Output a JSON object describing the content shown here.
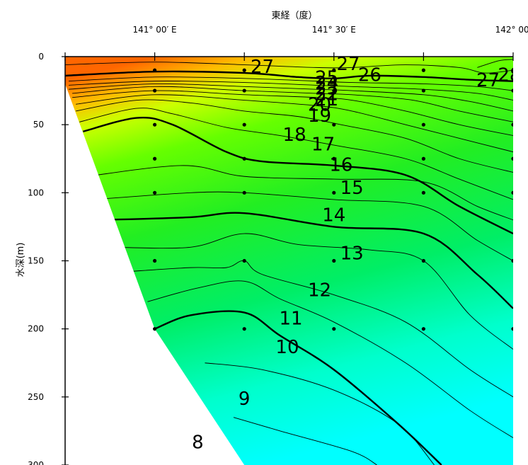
{
  "chart_data": {
    "type": "heatmap",
    "xlabel": "東経（度）",
    "ylabel": "水深(m)",
    "xlim": [
      140.75,
      142.0
    ],
    "ylim": [
      0,
      300
    ],
    "x_ticks": [
      {
        "value": 141.0,
        "label": "141° 00′ E"
      },
      {
        "value": 141.5,
        "label": "141° 30′ E"
      },
      {
        "value": 142.0,
        "label": "142° 00′"
      }
    ],
    "y_ticks": [
      {
        "value": 0,
        "label": "0"
      },
      {
        "value": 50,
        "label": "50"
      },
      {
        "value": 100,
        "label": "100"
      },
      {
        "value": 150,
        "label": "150"
      },
      {
        "value": 200,
        "label": "200"
      },
      {
        "value": 250,
        "label": "250"
      },
      {
        "value": 300,
        "label": "300"
      }
    ],
    "stations": [
      {
        "x": 141.0,
        "depths": [
          10,
          25,
          50,
          75,
          100,
          150,
          200
        ]
      },
      {
        "x": 141.25,
        "depths": [
          10,
          25,
          50,
          75,
          100,
          150,
          200
        ]
      },
      {
        "x": 141.5,
        "depths": [
          10,
          25,
          50,
          75,
          100,
          150,
          200
        ]
      },
      {
        "x": 141.75,
        "depths": [
          10,
          25,
          50,
          75,
          100,
          150,
          200
        ]
      },
      {
        "x": 142.0,
        "depths": [
          10,
          25,
          50,
          75,
          100,
          150,
          200
        ]
      }
    ],
    "bathymetry": [
      [
        140.75,
        20
      ],
      [
        141.0,
        200
      ],
      [
        141.25,
        300
      ]
    ],
    "contours": [
      {
        "level": 8,
        "bold": false,
        "points": [
          [
            141.22,
            265
          ],
          [
            141.35,
            275
          ],
          [
            141.55,
            290
          ],
          [
            141.62,
            300
          ]
        ]
      },
      {
        "level": 9,
        "bold": false,
        "points": [
          [
            141.14,
            225
          ],
          [
            141.3,
            230
          ],
          [
            141.5,
            245
          ],
          [
            141.68,
            270
          ],
          [
            141.78,
            300
          ]
        ]
      },
      {
        "level": 10,
        "bold": true,
        "points": [
          [
            141.0,
            200
          ],
          [
            141.1,
            190
          ],
          [
            141.25,
            188
          ],
          [
            141.35,
            205
          ],
          [
            141.5,
            230
          ],
          [
            141.68,
            270
          ],
          [
            141.8,
            300
          ]
        ]
      },
      {
        "level": 11,
        "bold": false,
        "points": [
          [
            140.98,
            180
          ],
          [
            141.12,
            170
          ],
          [
            141.25,
            165
          ],
          [
            141.35,
            178
          ],
          [
            141.5,
            195
          ],
          [
            141.7,
            225
          ],
          [
            141.88,
            260
          ],
          [
            142.0,
            280
          ]
        ]
      },
      {
        "level": 12,
        "bold": false,
        "points": [
          [
            140.92,
            158
          ],
          [
            141.1,
            155
          ],
          [
            141.2,
            155
          ],
          [
            141.25,
            150
          ],
          [
            141.3,
            160
          ],
          [
            141.5,
            175
          ],
          [
            141.7,
            195
          ],
          [
            141.88,
            230
          ],
          [
            142.0,
            250
          ]
        ]
      },
      {
        "level": 13,
        "bold": false,
        "points": [
          [
            140.88,
            140
          ],
          [
            141.1,
            140
          ],
          [
            141.25,
            130
          ],
          [
            141.4,
            138
          ],
          [
            141.6,
            142
          ],
          [
            141.75,
            150
          ],
          [
            141.88,
            190
          ],
          [
            142.0,
            215
          ]
        ]
      },
      {
        "level": 14,
        "bold": true,
        "points": [
          [
            140.85,
            120
          ],
          [
            141.1,
            118
          ],
          [
            141.25,
            115
          ],
          [
            141.5,
            125
          ],
          [
            141.75,
            130
          ],
          [
            141.9,
            160
          ],
          [
            142.0,
            185
          ]
        ]
      },
      {
        "level": 15,
        "bold": false,
        "points": [
          [
            140.83,
            105
          ],
          [
            141.1,
            100
          ],
          [
            141.25,
            100
          ],
          [
            141.5,
            105
          ],
          [
            141.75,
            110
          ],
          [
            141.9,
            135
          ],
          [
            142.0,
            150
          ]
        ]
      },
      {
        "level": 16,
        "bold": false,
        "points": [
          [
            140.81,
            88
          ],
          [
            141.08,
            80
          ],
          [
            141.25,
            88
          ],
          [
            141.5,
            90
          ],
          [
            141.75,
            92
          ],
          [
            141.9,
            110
          ],
          [
            142.0,
            120
          ]
        ]
      },
      {
        "level": 17,
        "bold": true,
        "points": [
          [
            140.8,
            55
          ],
          [
            140.95,
            45
          ],
          [
            141.05,
            50
          ],
          [
            141.2,
            70
          ],
          [
            141.3,
            77
          ],
          [
            141.5,
            80
          ],
          [
            141.7,
            87
          ],
          [
            141.85,
            110
          ],
          [
            142.0,
            130
          ]
        ]
      },
      {
        "level": 18,
        "bold": false,
        "points": [
          [
            140.79,
            48
          ],
          [
            140.95,
            38
          ],
          [
            141.05,
            42
          ],
          [
            141.2,
            52
          ],
          [
            141.35,
            58
          ],
          [
            141.5,
            65
          ],
          [
            141.7,
            75
          ],
          [
            141.85,
            90
          ],
          [
            142.0,
            105
          ]
        ]
      },
      {
        "level": 19,
        "bold": false,
        "points": [
          [
            140.78,
            40
          ],
          [
            140.95,
            32
          ],
          [
            141.1,
            34
          ],
          [
            141.25,
            40
          ],
          [
            141.4,
            44
          ],
          [
            141.52,
            50
          ],
          [
            141.7,
            60
          ],
          [
            141.85,
            75
          ],
          [
            142.0,
            85
          ]
        ]
      },
      {
        "level": 20,
        "bold": false,
        "points": [
          [
            140.78,
            35
          ],
          [
            141.0,
            28
          ],
          [
            141.25,
            32
          ],
          [
            141.45,
            36
          ],
          [
            141.55,
            40
          ],
          [
            141.7,
            50
          ],
          [
            141.85,
            60
          ],
          [
            142.0,
            70
          ]
        ]
      },
      {
        "level": 21,
        "bold": false,
        "points": [
          [
            140.77,
            30
          ],
          [
            141.0,
            25
          ],
          [
            141.25,
            28
          ],
          [
            141.45,
            30
          ],
          [
            141.55,
            32
          ],
          [
            141.7,
            40
          ],
          [
            141.85,
            50
          ],
          [
            142.0,
            58
          ]
        ]
      },
      {
        "level": 22,
        "bold": false,
        "points": [
          [
            140.77,
            27
          ],
          [
            141.0,
            22
          ],
          [
            141.25,
            25
          ],
          [
            141.45,
            27
          ],
          [
            141.55,
            28
          ],
          [
            141.72,
            32
          ],
          [
            141.85,
            40
          ],
          [
            142.0,
            48
          ]
        ]
      },
      {
        "level": 23,
        "bold": false,
        "points": [
          [
            140.76,
            24
          ],
          [
            141.0,
            20
          ],
          [
            141.25,
            22
          ],
          [
            141.45,
            24
          ],
          [
            141.55,
            25
          ],
          [
            141.75,
            28
          ],
          [
            141.88,
            33
          ],
          [
            142.0,
            40
          ]
        ]
      },
      {
        "level": 24,
        "bold": false,
        "points": [
          [
            140.76,
            21
          ],
          [
            141.0,
            18
          ],
          [
            141.25,
            19
          ],
          [
            141.45,
            21
          ],
          [
            141.55,
            22
          ],
          [
            141.75,
            24
          ],
          [
            141.9,
            27
          ],
          [
            142.0,
            32
          ]
        ]
      },
      {
        "level": 25,
        "bold": false,
        "points": [
          [
            140.76,
            18
          ],
          [
            141.0,
            15
          ],
          [
            141.25,
            16
          ],
          [
            141.45,
            18
          ],
          [
            141.55,
            19
          ],
          [
            141.75,
            20
          ],
          [
            141.9,
            22
          ],
          [
            142.0,
            25
          ]
        ]
      },
      {
        "level": 26,
        "bold": true,
        "points": [
          [
            140.75,
            14
          ],
          [
            141.0,
            11
          ],
          [
            141.25,
            12
          ],
          [
            141.4,
            15
          ],
          [
            141.5,
            16
          ],
          [
            141.6,
            14
          ],
          [
            141.75,
            15
          ],
          [
            141.88,
            17
          ],
          [
            142.0,
            18
          ]
        ]
      },
      {
        "level": 27,
        "bold": false,
        "points": [
          [
            140.75,
            6
          ],
          [
            141.0,
            4
          ],
          [
            141.25,
            6
          ],
          [
            141.45,
            8
          ],
          [
            141.55,
            8
          ],
          [
            141.7,
            6
          ],
          [
            141.85,
            8
          ],
          [
            141.92,
            12
          ],
          [
            142.0,
            10
          ]
        ]
      },
      {
        "level": 28,
        "bold": false,
        "points": [
          [
            141.9,
            8
          ],
          [
            141.96,
            3
          ],
          [
            142.0,
            2
          ]
        ]
      }
    ],
    "contour_labels": [
      {
        "text": "27",
        "x": 141.3,
        "y": 8
      },
      {
        "text": "27",
        "x": 141.54,
        "y": 6
      },
      {
        "text": "26",
        "x": 141.6,
        "y": 14
      },
      {
        "text": "25",
        "x": 141.48,
        "y": 16
      },
      {
        "text": "24",
        "x": 141.48,
        "y": 20
      },
      {
        "text": "23",
        "x": 141.48,
        "y": 24
      },
      {
        "text": "22",
        "x": 141.48,
        "y": 28
      },
      {
        "text": "21",
        "x": 141.48,
        "y": 32
      },
      {
        "text": "20",
        "x": 141.46,
        "y": 36
      },
      {
        "text": "19",
        "x": 141.46,
        "y": 44
      },
      {
        "text": "18",
        "x": 141.39,
        "y": 58
      },
      {
        "text": "17",
        "x": 141.47,
        "y": 65
      },
      {
        "text": "16",
        "x": 141.52,
        "y": 80
      },
      {
        "text": "15",
        "x": 141.55,
        "y": 97
      },
      {
        "text": "14",
        "x": 141.5,
        "y": 117
      },
      {
        "text": "13",
        "x": 141.55,
        "y": 145
      },
      {
        "text": "12",
        "x": 141.46,
        "y": 172
      },
      {
        "text": "11",
        "x": 141.38,
        "y": 193
      },
      {
        "text": "10",
        "x": 141.37,
        "y": 214
      },
      {
        "text": "9",
        "x": 141.25,
        "y": 252
      },
      {
        "text": "8",
        "x": 141.12,
        "y": 284
      },
      {
        "text": "27",
        "x": 141.93,
        "y": 18
      },
      {
        "text": "28",
        "x": 141.99,
        "y": 14
      }
    ],
    "colorscale": [
      {
        "value": 7,
        "color": "#00ffff"
      },
      {
        "value": 11,
        "color": "#00ee66"
      },
      {
        "value": 16,
        "color": "#33ff00"
      },
      {
        "value": 20,
        "color": "#aaff00"
      },
      {
        "value": 23,
        "color": "#ffee00"
      },
      {
        "value": 25,
        "color": "#ffaa00"
      },
      {
        "value": 28,
        "color": "#ff5500"
      }
    ],
    "grid": false
  }
}
